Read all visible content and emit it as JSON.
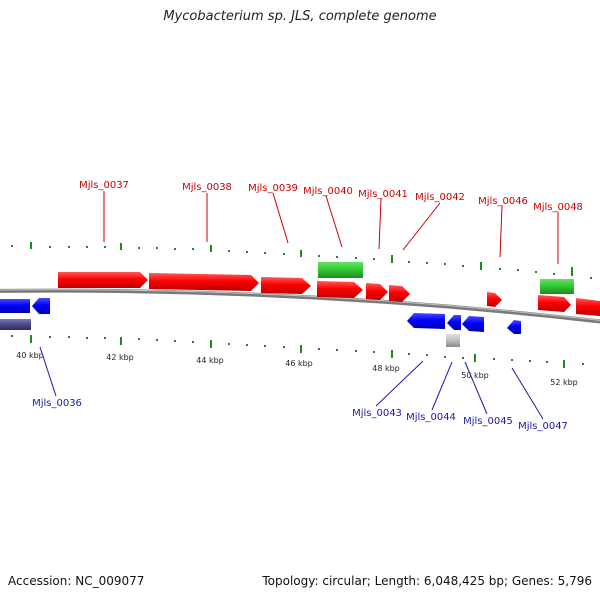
{
  "title": "Mycobacterium sp. JLS, complete genome",
  "footer": {
    "accession": "Accession: NC_009077",
    "summary": "Topology: circular; Length: 6,048,425 bp; Genes: 5,796"
  },
  "colors": {
    "forward_gene": "#ff0000",
    "reverse_gene": "#0000ff",
    "rna_gene": "#33cc33",
    "other_feature": "#aaaaaa",
    "repeat_feature": "#4a4a8a",
    "tick": "#1f8a1f",
    "backbone": "#7a7a7a",
    "forward_label": "#cc0000",
    "reverse_label": "#1a1aaa"
  },
  "scale_labels": [
    "40 kbp",
    "42 kbp",
    "44 kbp",
    "46 kbp",
    "48 kbp",
    "50 kbp",
    "52 kbp"
  ],
  "gene_labels_forward": [
    "Mjls_0037",
    "Mjls_0038",
    "Mjls_0039",
    "Mjls_0040",
    "Mjls_0041",
    "Mjls_0042",
    "Mjls_0046",
    "Mjls_0048"
  ],
  "gene_labels_reverse": [
    "Mjls_0036",
    "Mjls_0043",
    "Mjls_0044",
    "Mjls_0045",
    "Mjls_0047"
  ]
}
